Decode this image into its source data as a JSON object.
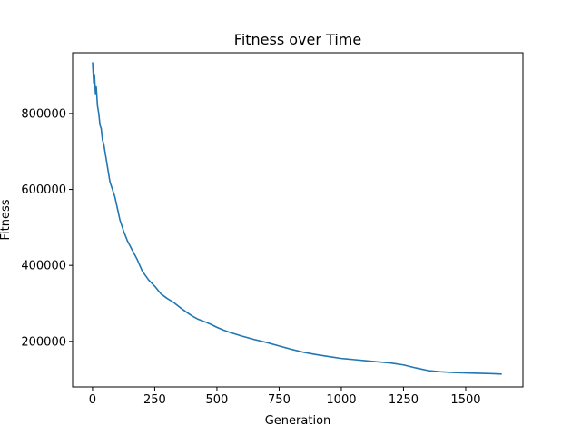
{
  "chart_data": {
    "type": "line",
    "title": "Fitness over Time",
    "xlabel": "Generation",
    "ylabel": "Fitness",
    "xlim": [
      -80,
      1730
    ],
    "ylim": [
      80000,
      960000
    ],
    "xticks": [
      0,
      250,
      500,
      750,
      1000,
      1250,
      1500
    ],
    "yticks": [
      200000,
      400000,
      600000,
      800000
    ],
    "grid": false,
    "legend": "none",
    "series": [
      {
        "color": "#1f77b4",
        "x": [
          0,
          5,
          8,
          12,
          15,
          20,
          25,
          30,
          35,
          40,
          45,
          50,
          55,
          60,
          70,
          80,
          90,
          100,
          110,
          125,
          140,
          160,
          180,
          200,
          225,
          250,
          275,
          300,
          325,
          350,
          375,
          400,
          425,
          450,
          475,
          500,
          525,
          550,
          575,
          600,
          650,
          700,
          750,
          800,
          850,
          900,
          950,
          1000,
          1050,
          1100,
          1150,
          1200,
          1250,
          1300,
          1350,
          1400,
          1450,
          1500,
          1550,
          1600,
          1645
        ],
        "values": [
          935000,
          880000,
          900000,
          850000,
          870000,
          820000,
          800000,
          770000,
          760000,
          730000,
          720000,
          700000,
          680000,
          660000,
          620000,
          600000,
          580000,
          550000,
          520000,
          490000,
          465000,
          440000,
          415000,
          385000,
          362000,
          345000,
          325000,
          313000,
          303000,
          290000,
          278000,
          267000,
          258000,
          252000,
          245000,
          237000,
          230000,
          224000,
          219000,
          214000,
          205000,
          197000,
          188000,
          179000,
          171000,
          165000,
          160000,
          155000,
          152000,
          149000,
          146000,
          143000,
          138000,
          130000,
          123000,
          120000,
          118000,
          117000,
          116000,
          115000,
          114000
        ]
      }
    ]
  }
}
